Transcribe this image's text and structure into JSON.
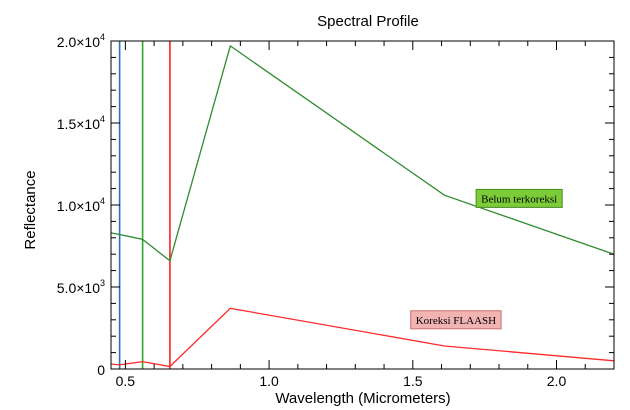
{
  "chart_data": {
    "type": "line",
    "title": "Spectral Profile",
    "xlabel": "Wavelength (Micrometers)",
    "ylabel": "Reflectance",
    "xlim": [
      0.45,
      2.2
    ],
    "ylim": [
      0,
      20000
    ],
    "x_ticks": [
      {
        "value": 0.5,
        "label": "0.5"
      },
      {
        "value": 1.0,
        "label": "1.0"
      },
      {
        "value": 1.5,
        "label": "1.5"
      },
      {
        "value": 2.0,
        "label": "2.0"
      }
    ],
    "y_ticks": [
      {
        "value": 0,
        "mant": "0",
        "exp": ""
      },
      {
        "value": 5000,
        "mant": "5.0×10",
        "exp": "3"
      },
      {
        "value": 10000,
        "mant": "1.0×10",
        "exp": "4"
      },
      {
        "value": 15000,
        "mant": "1.5×10",
        "exp": "4"
      },
      {
        "value": 20000,
        "mant": "2.0×10",
        "exp": "4"
      }
    ],
    "grid": false,
    "series": [
      {
        "color": "#2e8b2e",
        "x": [
          0.45,
          0.48,
          0.56,
          0.655,
          0.865,
          1.61,
          2.2
        ],
        "y": [
          8300,
          8200,
          7900,
          6600,
          19700,
          10600,
          7000
        ]
      },
      {
        "color": "#ff2a2a",
        "x": [
          0.45,
          0.48,
          0.56,
          0.655,
          0.865,
          1.61,
          2.2
        ],
        "y": [
          300,
          250,
          450,
          150,
          3700,
          1400,
          500
        ]
      }
    ],
    "band_lines": [
      {
        "x": 0.48,
        "color": "#2f6fbf"
      },
      {
        "x": 0.56,
        "color": "#2eaa2e"
      },
      {
        "x": 0.655,
        "color": "#ff2020"
      }
    ],
    "annotations": [
      {
        "text": "Belum terkoreksi",
        "fill": "#7ccc3a",
        "stroke": "#4a8a20",
        "anchor_x": 1.87,
        "anchor_y": 10400
      },
      {
        "text": "Koreksi FLAASH",
        "fill": "#f2b3b3",
        "stroke": "#cc7070",
        "anchor_x": 1.65,
        "anchor_y": 3000
      }
    ]
  }
}
